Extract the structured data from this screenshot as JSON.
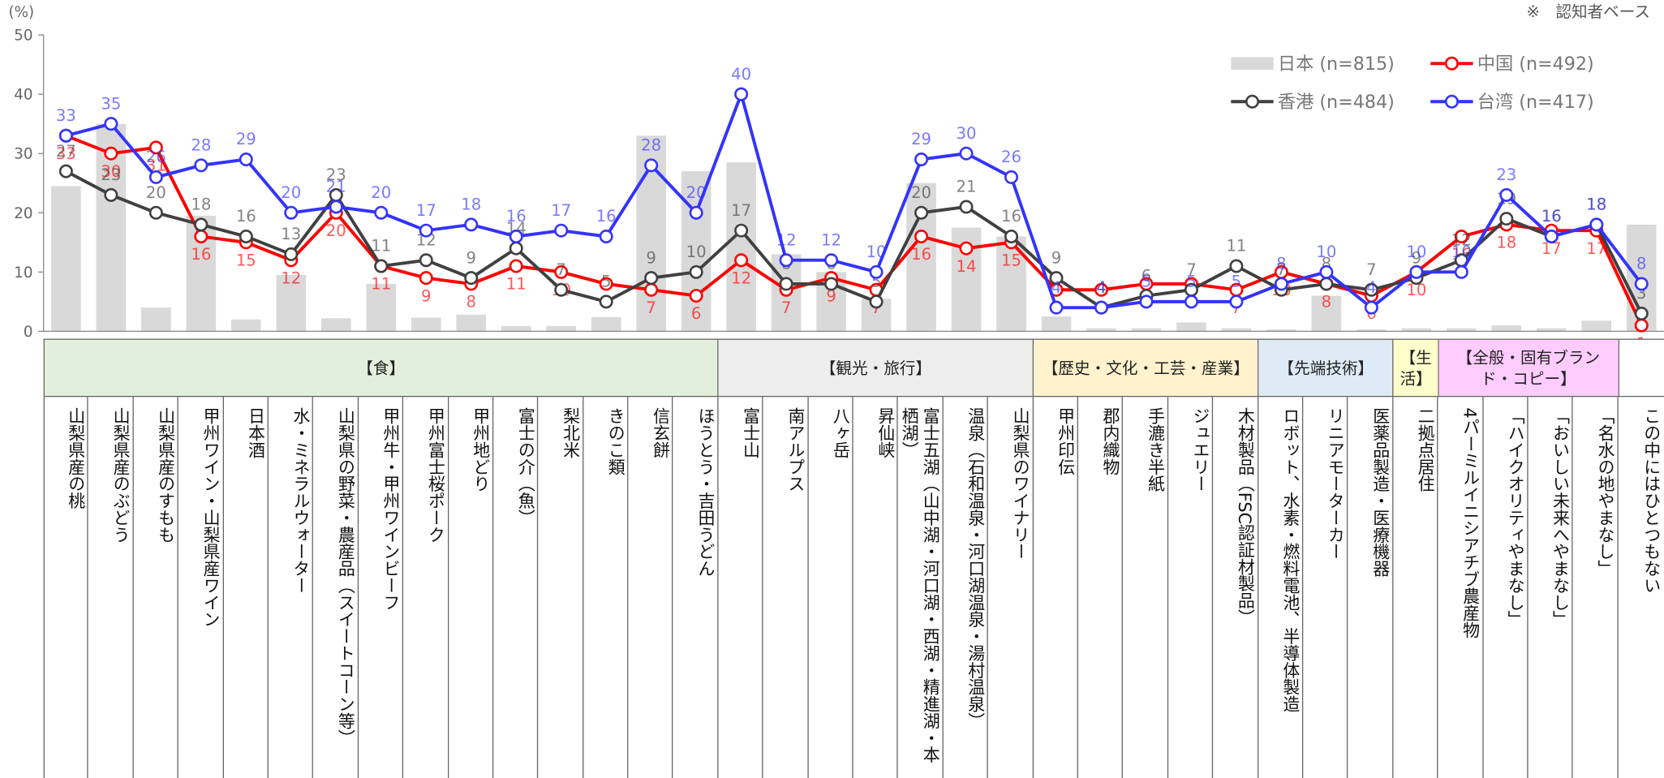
{
  "chart_data": {
    "type": "combo",
    "unit_label": "(%)",
    "note": "※　認知者ベース",
    "groups": [
      {
        "name": "【食】",
        "color": "#e2efda",
        "categories": [
          "山梨県産の桃",
          "山梨県産のぶどう",
          "山梨県産のすもも",
          "甲州ワイン・山梨県産ワイン",
          "日本酒",
          "水・ミネラルウォーター",
          "山梨県の野菜・農産品（スイートコーン等）",
          "甲州牛・甲州ワインビーフ",
          "甲州富士桜ポーク",
          "甲州地どり",
          "富士の介（魚）",
          "梨北米",
          "きのこ類",
          "信玄餅",
          "ほうとう・吉田うどん"
        ]
      },
      {
        "name": "【観光・旅行】",
        "color": "#ededed",
        "categories": [
          "富士山",
          "南アルプス",
          "八ヶ岳",
          "昇仙峡",
          "富士五湖（山中湖・河口湖・西湖・精進湖・本栖湖）",
          "温泉（石和温泉・河口湖温泉・湯村温泉）",
          "山梨県のワイナリー"
        ]
      },
      {
        "name": "【歴史・文化・工芸・産業】",
        "color": "#fff2cc",
        "categories": [
          "甲州印伝",
          "郡内織物",
          "手漉き半紙",
          "ジュエリー",
          "木材製品（FSC認証材製品）"
        ]
      },
      {
        "name": "【先端技術】",
        "color": "#ddebf7",
        "categories": [
          "ロボット、水素・燃料電池、半導体製造",
          "リニアモーターカー",
          "医薬品製造・医療機器"
        ]
      },
      {
        "name": "【生活】",
        "color": "#ffffcc",
        "categories": [
          "二拠点居住"
        ]
      },
      {
        "name": "【全般・固有ブランド・コピー】",
        "color": "#ffccff",
        "categories": [
          "4パーミルイニシアチブ農産物",
          "「ハイクオリティやまなし」",
          "「おいしい未来へやまなし」",
          "「名水の地やまなし」"
        ]
      },
      {
        "name": null,
        "color": "#ffffff",
        "categories": [
          "この中にはひとつもない"
        ]
      }
    ],
    "series": [
      {
        "name": "日本 (n=815)",
        "type": "bar",
        "color": "#d9d9d9",
        "values": [
          24.5,
          35,
          4,
          19.5,
          2,
          9.5,
          2.2,
          8,
          2.3,
          2.8,
          0.9,
          0.9,
          2.4,
          33,
          27,
          28.5,
          13,
          10,
          5.5,
          25,
          17.5,
          16,
          2.5,
          0.5,
          0.5,
          1.5,
          0.5,
          0.3,
          6,
          0.3,
          0.5,
          0.5,
          1,
          0.5,
          1.8,
          18
        ]
      },
      {
        "name": "中国 (n=492)",
        "type": "line",
        "color": "#ff0000",
        "values": [
          33,
          30,
          31,
          16,
          15,
          12,
          20,
          11,
          9,
          8,
          11,
          10,
          8,
          7,
          6,
          12,
          7,
          9,
          7,
          16,
          14,
          15,
          7,
          7,
          8,
          8,
          7,
          10,
          8,
          6,
          10,
          16,
          18,
          17,
          17,
          1
        ]
      },
      {
        "name": "香港 (n=484)",
        "type": "line",
        "color": "#404040",
        "values": [
          27,
          23,
          20,
          18,
          16,
          13,
          23,
          11,
          12,
          9,
          14,
          7,
          5,
          9,
          10,
          17,
          8,
          8,
          5,
          20,
          21,
          16,
          9,
          4,
          6,
          7,
          11,
          7,
          8,
          7,
          9,
          12,
          19,
          16,
          18,
          3
        ]
      },
      {
        "name": "台湾 (n=417)",
        "type": "line",
        "color": "#3333ff",
        "values": [
          33,
          35,
          26,
          28,
          29,
          20,
          21,
          20,
          17,
          18,
          16,
          17,
          16,
          28,
          20,
          40,
          12,
          12,
          10,
          29,
          30,
          26,
          4,
          4,
          5,
          5,
          5,
          8,
          10,
          4,
          10,
          10,
          23,
          16,
          18,
          8
        ]
      }
    ],
    "ylim": [
      0,
      50
    ],
    "yticks": [
      0,
      10,
      20,
      30,
      40,
      50
    ]
  }
}
